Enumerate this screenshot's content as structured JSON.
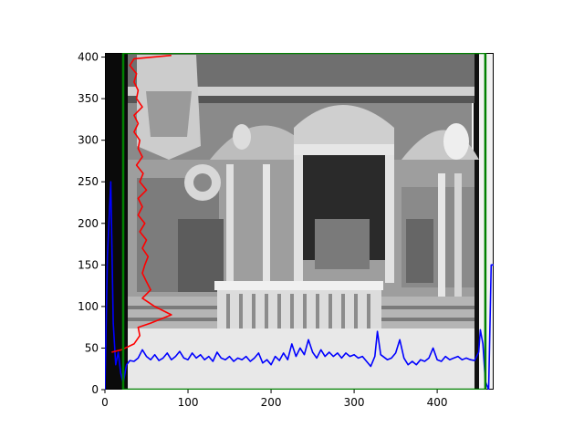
{
  "chart_data": {
    "type": "line",
    "title": "",
    "xlabel": "",
    "ylabel": "",
    "xlim": [
      0,
      468
    ],
    "ylim": [
      0,
      405
    ],
    "xticks": [
      0,
      100,
      200,
      300,
      400
    ],
    "yticks": [
      0,
      50,
      100,
      150,
      200,
      250,
      300,
      350,
      400
    ],
    "background": "grayscale photograph of a church interior (iconostasis, altar canopy, chandelier, balustrade)",
    "grid": false,
    "legend": "none",
    "series": [
      {
        "color": "#0000ff",
        "orientation": "horizontal",
        "points": [
          [
            0,
            0
          ],
          [
            3,
            160
          ],
          [
            7,
            250
          ],
          [
            10,
            80
          ],
          [
            13,
            30
          ],
          [
            16,
            45
          ],
          [
            19,
            20
          ],
          [
            22,
            8
          ],
          [
            26,
            30
          ],
          [
            30,
            35
          ],
          [
            35,
            34
          ],
          [
            40,
            38
          ],
          [
            45,
            48
          ],
          [
            50,
            40
          ],
          [
            55,
            36
          ],
          [
            60,
            42
          ],
          [
            65,
            35
          ],
          [
            70,
            38
          ],
          [
            75,
            44
          ],
          [
            80,
            36
          ],
          [
            85,
            40
          ],
          [
            90,
            46
          ],
          [
            95,
            38
          ],
          [
            100,
            36
          ],
          [
            105,
            44
          ],
          [
            110,
            38
          ],
          [
            115,
            42
          ],
          [
            120,
            36
          ],
          [
            125,
            40
          ],
          [
            130,
            34
          ],
          [
            135,
            45
          ],
          [
            140,
            38
          ],
          [
            145,
            36
          ],
          [
            150,
            40
          ],
          [
            155,
            34
          ],
          [
            160,
            38
          ],
          [
            165,
            36
          ],
          [
            170,
            40
          ],
          [
            175,
            34
          ],
          [
            180,
            38
          ],
          [
            185,
            44
          ],
          [
            190,
            32
          ],
          [
            195,
            36
          ],
          [
            200,
            30
          ],
          [
            205,
            40
          ],
          [
            210,
            35
          ],
          [
            215,
            44
          ],
          [
            220,
            36
          ],
          [
            225,
            55
          ],
          [
            230,
            40
          ],
          [
            235,
            50
          ],
          [
            240,
            42
          ],
          [
            245,
            60
          ],
          [
            250,
            45
          ],
          [
            255,
            38
          ],
          [
            260,
            48
          ],
          [
            265,
            40
          ],
          [
            270,
            45
          ],
          [
            275,
            40
          ],
          [
            280,
            44
          ],
          [
            285,
            38
          ],
          [
            290,
            44
          ],
          [
            295,
            40
          ],
          [
            300,
            42
          ],
          [
            305,
            38
          ],
          [
            310,
            40
          ],
          [
            315,
            34
          ],
          [
            320,
            28
          ],
          [
            325,
            40
          ],
          [
            328,
            70
          ],
          [
            332,
            42
          ],
          [
            340,
            36
          ],
          [
            345,
            38
          ],
          [
            350,
            44
          ],
          [
            355,
            60
          ],
          [
            360,
            38
          ],
          [
            365,
            30
          ],
          [
            370,
            34
          ],
          [
            375,
            30
          ],
          [
            380,
            36
          ],
          [
            385,
            34
          ],
          [
            390,
            38
          ],
          [
            395,
            50
          ],
          [
            400,
            36
          ],
          [
            405,
            34
          ],
          [
            410,
            40
          ],
          [
            415,
            36
          ],
          [
            420,
            38
          ],
          [
            425,
            40
          ],
          [
            430,
            36
          ],
          [
            435,
            38
          ],
          [
            440,
            36
          ],
          [
            445,
            35
          ],
          [
            450,
            45
          ],
          [
            452,
            72
          ],
          [
            455,
            55
          ],
          [
            458,
            10
          ],
          [
            462,
            0
          ],
          [
            465,
            150
          ],
          [
            468,
            150
          ]
        ]
      },
      {
        "color": "#ff0000",
        "orientation": "vertical",
        "points": [
          [
            8,
            45
          ],
          [
            20,
            48
          ],
          [
            35,
            55
          ],
          [
            42,
            65
          ],
          [
            40,
            75
          ],
          [
            55,
            80
          ],
          [
            80,
            90
          ],
          [
            60,
            100
          ],
          [
            45,
            110
          ],
          [
            55,
            120
          ],
          [
            50,
            130
          ],
          [
            45,
            140
          ],
          [
            48,
            150
          ],
          [
            52,
            160
          ],
          [
            45,
            170
          ],
          [
            50,
            180
          ],
          [
            42,
            190
          ],
          [
            48,
            200
          ],
          [
            40,
            210
          ],
          [
            45,
            220
          ],
          [
            40,
            230
          ],
          [
            50,
            240
          ],
          [
            42,
            250
          ],
          [
            46,
            260
          ],
          [
            38,
            270
          ],
          [
            45,
            280
          ],
          [
            40,
            290
          ],
          [
            42,
            300
          ],
          [
            35,
            310
          ],
          [
            40,
            320
          ],
          [
            35,
            330
          ],
          [
            45,
            340
          ],
          [
            38,
            350
          ],
          [
            40,
            360
          ],
          [
            35,
            370
          ],
          [
            38,
            380
          ],
          [
            30,
            390
          ],
          [
            35,
            398
          ],
          [
            80,
            402
          ]
        ]
      },
      {
        "color": "#008000",
        "orientation": "vertical",
        "points": [
          [
            22,
            0
          ],
          [
            22,
            405
          ],
          [
            458,
            405
          ],
          [
            458,
            0
          ],
          [
            22,
            0
          ]
        ]
      }
    ]
  }
}
